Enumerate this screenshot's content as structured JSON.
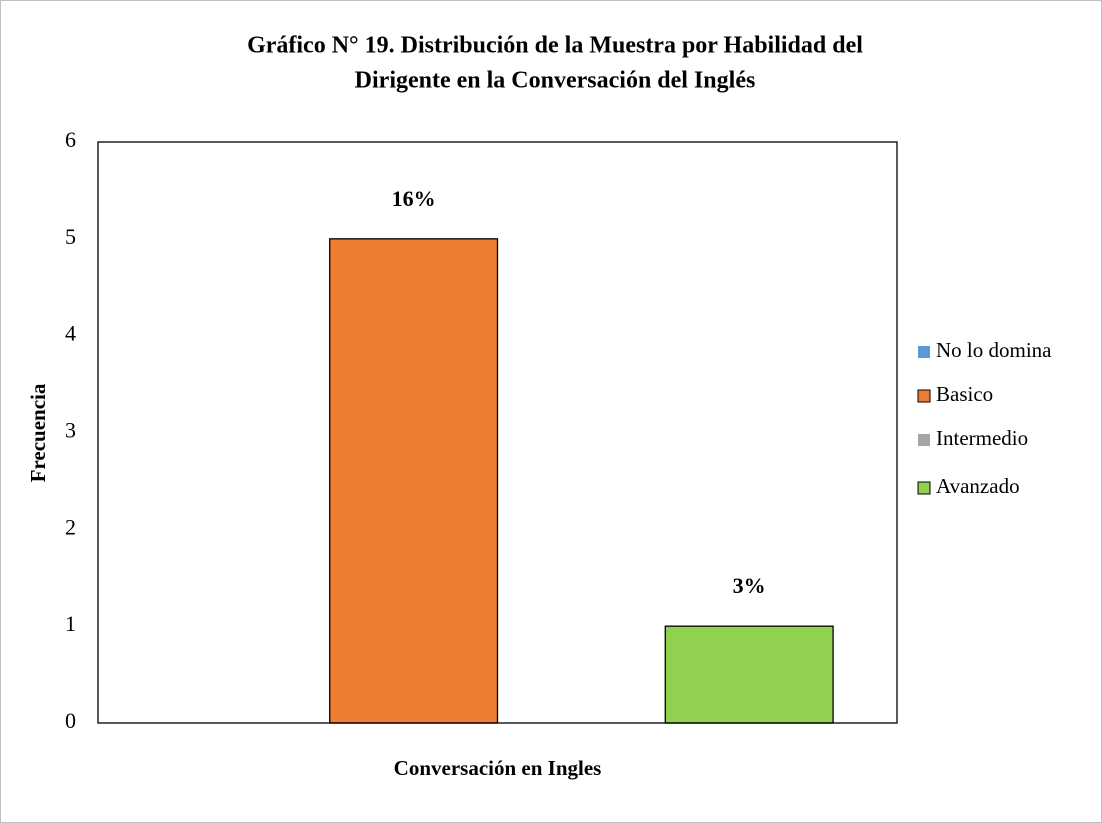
{
  "chart_data": {
    "type": "bar",
    "title": "Gráfico N° 19. Distribución de la Muestra por Habilidad del Dirigente en la Conversación del Inglés",
    "title_lines": [
      "Gráfico N° 19. Distribución de la Muestra por Habilidad del",
      "Dirigente en la Conversación del Inglés"
    ],
    "y_label": "Frecuencia",
    "categories": [
      "Conversación en Ingles"
    ],
    "series": [
      {
        "name": "No lo domina",
        "color": "#5b9bd5",
        "values": [
          0
        ]
      },
      {
        "name": "Basico",
        "color": "#ed7d31",
        "values": [
          5
        ],
        "data_labels": [
          "16%"
        ]
      },
      {
        "name": "Intermedio",
        "color": "#a5a5a5",
        "values": [
          0
        ]
      },
      {
        "name": "Avanzado",
        "color": "#92d050",
        "values": [
          1
        ],
        "data_labels": [
          "3%"
        ]
      }
    ],
    "ylim": [
      0,
      6
    ],
    "yticks": [
      0,
      1,
      2,
      3,
      4,
      5,
      6
    ],
    "grid": false,
    "legend": "right"
  }
}
